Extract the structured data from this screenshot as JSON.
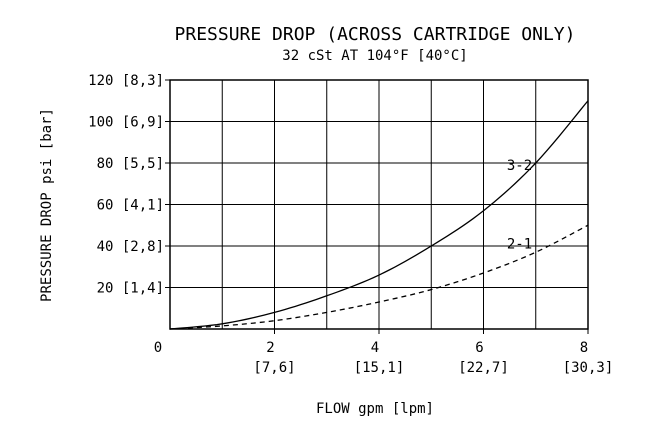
{
  "chart_data": {
    "type": "line",
    "title": "PRESSURE DROP (ACROSS CARTRIDGE ONLY)",
    "subtitle": "32 cSt AT 104°F [40°C]",
    "xlabel": "FLOW gpm [lpm]",
    "ylabel": "PRESSURE DROP psi [bar]",
    "xlim": [
      0,
      8
    ],
    "ylim": [
      0,
      120
    ],
    "grid": true,
    "x_ticks": [
      {
        "value": 0,
        "label": "0",
        "metric": ""
      },
      {
        "value": 2,
        "label": "2",
        "metric": "[7,6]"
      },
      {
        "value": 4,
        "label": "4",
        "metric": "[15,1]"
      },
      {
        "value": 6,
        "label": "6",
        "metric": "[22,7]"
      },
      {
        "value": 8,
        "label": "8",
        "metric": "[30,3]"
      }
    ],
    "y_ticks": [
      {
        "value": 20,
        "label": "20 [1,4]"
      },
      {
        "value": 40,
        "label": "40 [2,8]"
      },
      {
        "value": 60,
        "label": "60 [4,1]"
      },
      {
        "value": 80,
        "label": "80 [5,5]"
      },
      {
        "value": 100,
        "label": "100 [6,9]"
      },
      {
        "value": 120,
        "label": "120 [8,3]"
      }
    ],
    "series": [
      {
        "name": "3-2",
        "style": "solid",
        "points": [
          [
            0,
            0
          ],
          [
            1,
            2.5
          ],
          [
            2,
            8
          ],
          [
            3,
            16
          ],
          [
            4,
            26
          ],
          [
            5,
            40
          ],
          [
            6,
            57
          ],
          [
            7,
            80
          ],
          [
            8,
            110
          ]
        ]
      },
      {
        "name": "2-1",
        "style": "dashed",
        "points": [
          [
            0,
            0
          ],
          [
            1,
            1.5
          ],
          [
            2,
            4
          ],
          [
            3,
            8
          ],
          [
            4,
            13
          ],
          [
            5,
            19
          ],
          [
            6,
            27
          ],
          [
            7,
            37
          ],
          [
            8,
            50
          ]
        ]
      }
    ]
  }
}
